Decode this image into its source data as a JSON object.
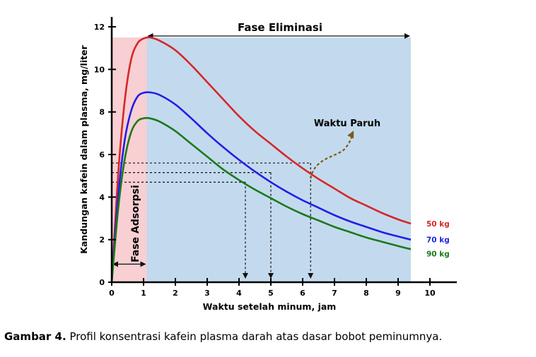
{
  "chart_data": {
    "type": "line",
    "xlabel": "Waktu setelah minum, jam",
    "ylabel": "Kandungan kafein dalam plasma, mg/liter",
    "xlim": [
      0,
      10
    ],
    "ylim": [
      0,
      12
    ],
    "x_ticks": [
      "0",
      "1",
      "2",
      "3",
      "4",
      "5",
      "6",
      "7",
      "8",
      "9",
      "10"
    ],
    "y_ticks": [
      "0",
      "2",
      "4",
      "6",
      "8",
      "10",
      "12"
    ],
    "series": [
      {
        "name": "50 kg",
        "color": "#d62728",
        "points": [
          [
            0,
            0
          ],
          [
            0.2,
            5.0
          ],
          [
            0.4,
            8.4
          ],
          [
            0.6,
            10.4
          ],
          [
            0.8,
            11.2
          ],
          [
            1.0,
            11.45
          ],
          [
            1.2,
            11.5
          ],
          [
            1.5,
            11.35
          ],
          [
            2,
            10.9
          ],
          [
            2.5,
            10.2
          ],
          [
            3,
            9.4
          ],
          [
            3.5,
            8.6
          ],
          [
            4,
            7.8
          ],
          [
            4.5,
            7.1
          ],
          [
            5,
            6.5
          ],
          [
            5.5,
            5.9
          ],
          [
            6,
            5.35
          ],
          [
            6.5,
            4.85
          ],
          [
            7,
            4.4
          ],
          [
            7.5,
            3.95
          ],
          [
            8,
            3.6
          ],
          [
            8.5,
            3.25
          ],
          [
            9,
            2.95
          ],
          [
            9.4,
            2.75
          ]
        ]
      },
      {
        "name": "70 kg",
        "color": "#1f1fe8",
        "points": [
          [
            0,
            0
          ],
          [
            0.2,
            4.0
          ],
          [
            0.4,
            6.6
          ],
          [
            0.6,
            8.0
          ],
          [
            0.8,
            8.7
          ],
          [
            1.0,
            8.9
          ],
          [
            1.2,
            8.92
          ],
          [
            1.5,
            8.8
          ],
          [
            2,
            8.35
          ],
          [
            2.5,
            7.7
          ],
          [
            3,
            7.0
          ],
          [
            3.5,
            6.35
          ],
          [
            4,
            5.75
          ],
          [
            4.5,
            5.2
          ],
          [
            5,
            4.7
          ],
          [
            5.5,
            4.25
          ],
          [
            6,
            3.85
          ],
          [
            6.5,
            3.5
          ],
          [
            7,
            3.15
          ],
          [
            7.5,
            2.85
          ],
          [
            8,
            2.6
          ],
          [
            8.5,
            2.35
          ],
          [
            9,
            2.15
          ],
          [
            9.4,
            2.0
          ]
        ]
      },
      {
        "name": "90 kg",
        "color": "#1a7a1a",
        "points": [
          [
            0,
            0
          ],
          [
            0.2,
            3.4
          ],
          [
            0.4,
            5.7
          ],
          [
            0.6,
            7.0
          ],
          [
            0.8,
            7.55
          ],
          [
            1.0,
            7.7
          ],
          [
            1.2,
            7.7
          ],
          [
            1.5,
            7.55
          ],
          [
            2,
            7.1
          ],
          [
            2.5,
            6.5
          ],
          [
            3,
            5.9
          ],
          [
            3.5,
            5.3
          ],
          [
            4,
            4.8
          ],
          [
            4.5,
            4.35
          ],
          [
            5,
            3.95
          ],
          [
            5.5,
            3.55
          ],
          [
            6,
            3.2
          ],
          [
            6.5,
            2.9
          ],
          [
            7,
            2.6
          ],
          [
            7.5,
            2.35
          ],
          [
            8,
            2.1
          ],
          [
            8.5,
            1.9
          ],
          [
            9,
            1.7
          ],
          [
            9.4,
            1.55
          ]
        ]
      }
    ],
    "regions": [
      {
        "label": "Fase Adsorpsi",
        "x": [
          0,
          1.1
        ],
        "color": "#f8cfd2"
      },
      {
        "label": "Fase Eliminasi",
        "x": [
          1.1,
          9.4
        ],
        "color": "#c3daee"
      }
    ],
    "half_life_annotation": {
      "label": "Waktu Paruh",
      "arrow_color": "#7a5c12",
      "markers": [
        {
          "series": "90 kg",
          "level": 4.7,
          "time": 4.2
        },
        {
          "series": "70 kg",
          "level": 5.15,
          "time": 5.0
        },
        {
          "series": "50 kg",
          "level": 5.6,
          "time": 6.25
        }
      ]
    },
    "grid": false
  },
  "caption": {
    "label": "Gambar 4.",
    "text": " Profil konsentrasi kafein plasma darah atas dasar bobot peminumnya."
  }
}
